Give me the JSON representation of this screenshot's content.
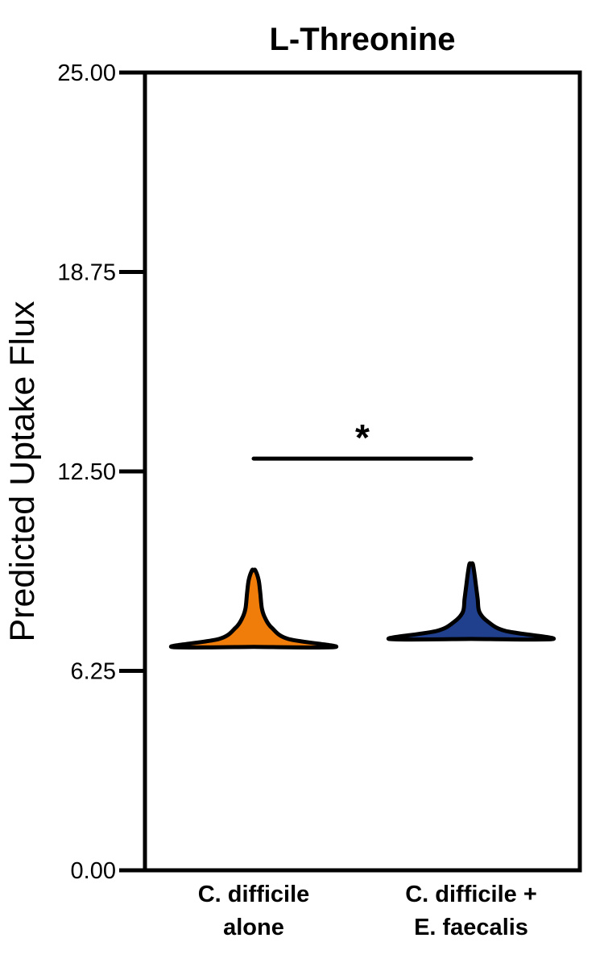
{
  "chart_data": {
    "type": "violin",
    "title": "L-Threonine",
    "ylabel": "Predicted Uptake Flux",
    "xlabel": "",
    "ylim": [
      0,
      25
    ],
    "yticks": [
      0,
      6.25,
      12.5,
      18.75,
      25
    ],
    "ytick_labels": [
      "0.00",
      "6.25",
      "12.50",
      "18.75",
      "25.00"
    ],
    "grid": false,
    "legend": "none",
    "categories": [
      {
        "lines": [
          "C. difficile",
          "alone"
        ]
      },
      {
        "lines": [
          "C. difficile +",
          "E. faecalis"
        ]
      }
    ],
    "series": [
      {
        "color": "#f07d0a",
        "min": 7.0,
        "max": 9.4,
        "density": [
          [
            7.0,
            1.0
          ],
          [
            7.25,
            0.42
          ],
          [
            7.6,
            0.22
          ],
          [
            7.9,
            0.14
          ],
          [
            8.2,
            0.1
          ],
          [
            8.7,
            0.08
          ],
          [
            9.1,
            0.06
          ],
          [
            9.4,
            0.02
          ]
        ]
      },
      {
        "color": "#203f8c",
        "min": 7.25,
        "max": 9.6,
        "density": [
          [
            7.25,
            1.0
          ],
          [
            7.5,
            0.42
          ],
          [
            7.8,
            0.2
          ],
          [
            8.1,
            0.1
          ],
          [
            8.5,
            0.08
          ],
          [
            8.9,
            0.06
          ],
          [
            9.3,
            0.04
          ],
          [
            9.6,
            0.02
          ]
        ]
      }
    ],
    "significance": {
      "label": "*",
      "between": [
        0,
        1
      ],
      "y": 12.9
    }
  }
}
